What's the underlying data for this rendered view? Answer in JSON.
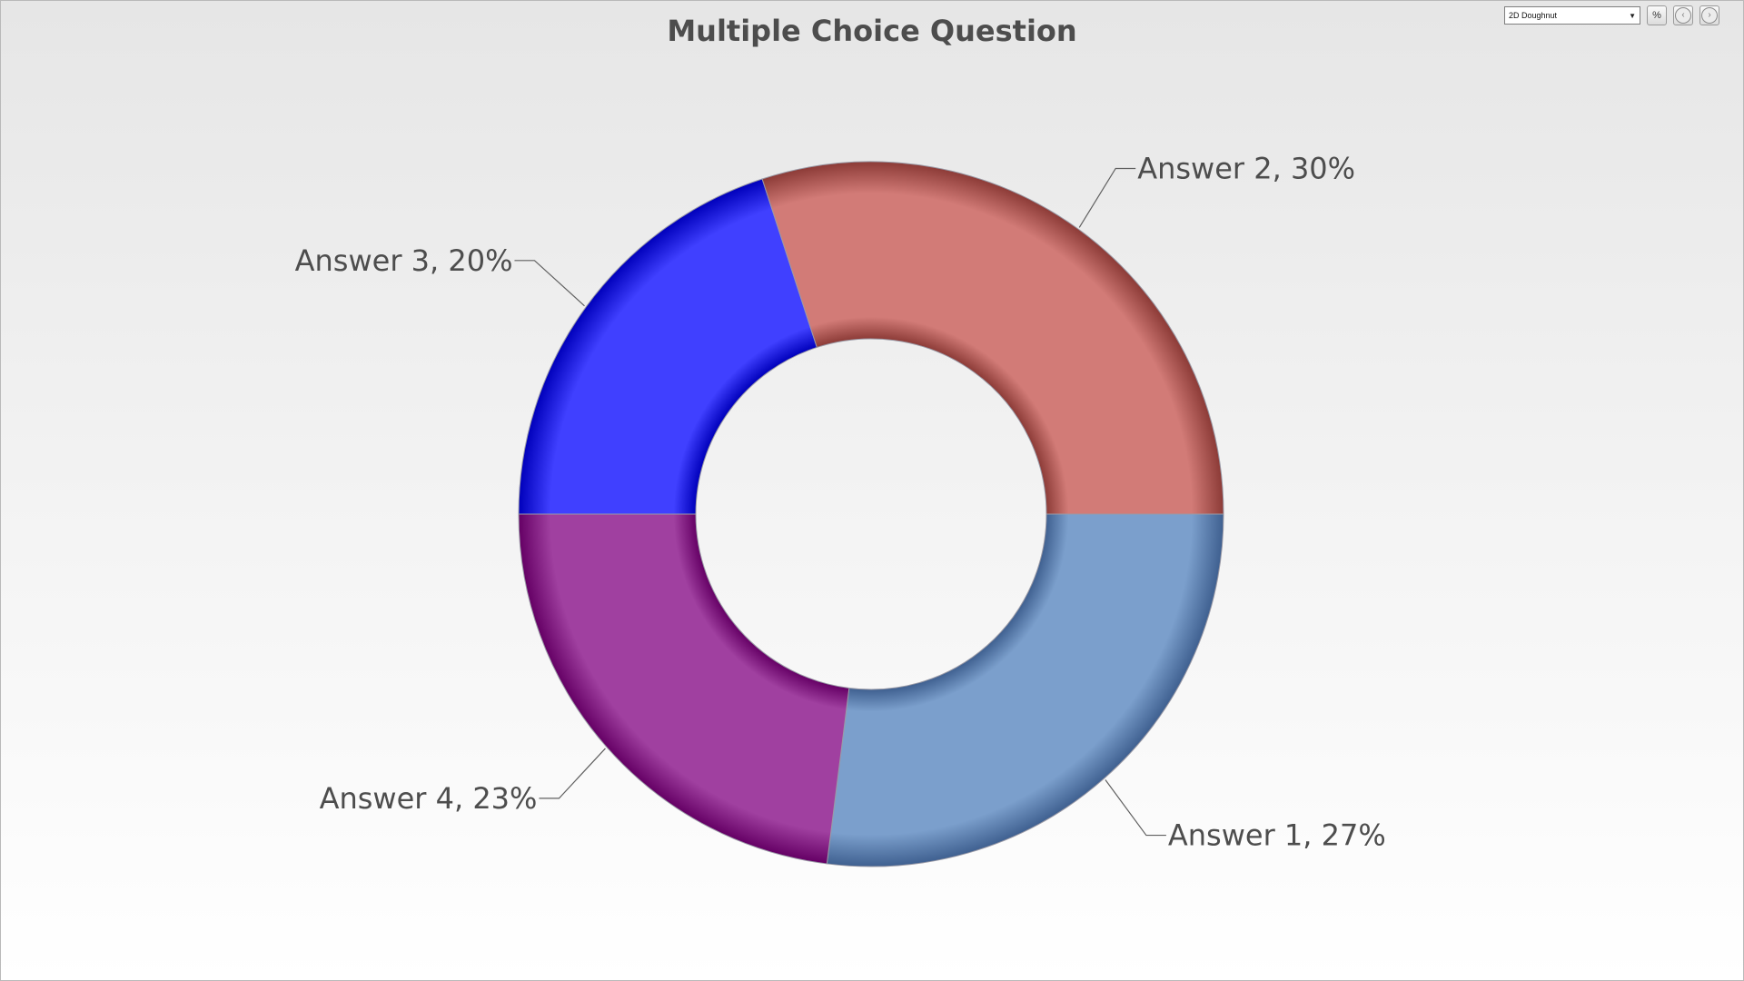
{
  "toolbar": {
    "chart_type_selected": "2D Doughnut",
    "percent_button_label": "%",
    "prev_icon": "circle-arrow-left-icon",
    "next_icon": "circle-arrow-right-icon"
  },
  "chart_data": {
    "type": "pie",
    "variant": "doughnut",
    "title": "Multiple Choice Question",
    "labels_format": "{label}, {percent}%",
    "slices": [
      {
        "label": "Answer 1",
        "percent": 27,
        "color": "#7b9fcc",
        "edge": "#3f6090"
      },
      {
        "label": "Answer 4",
        "percent": 23,
        "color": "#a040a0",
        "edge": "#650065"
      },
      {
        "label": "Answer 3",
        "percent": 20,
        "color": "#4040ff",
        "edge": "#0000bb"
      },
      {
        "label": "Answer 2",
        "percent": 30,
        "color": "#d27b77",
        "edge": "#8c3b37"
      }
    ]
  }
}
